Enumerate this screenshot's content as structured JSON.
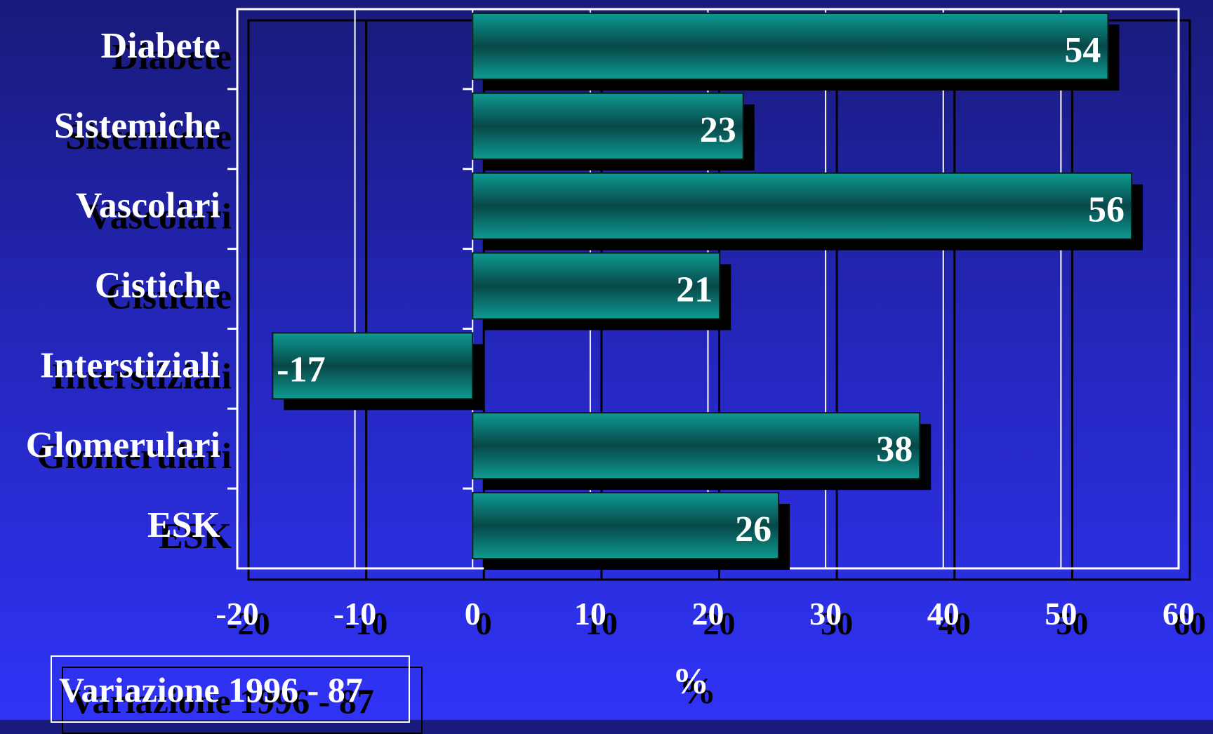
{
  "chart_data": {
    "type": "bar",
    "orientation": "horizontal",
    "categories": [
      "Diabete",
      "Sistemiche",
      "Vascolari",
      "Cistiche",
      "Interstiziali",
      "Glomerulari",
      "ESK"
    ],
    "values": [
      54,
      23,
      56,
      21,
      -17,
      38,
      26
    ],
    "xlabel": "%",
    "xlim": [
      -20,
      60
    ],
    "xticks": [
      -20,
      -10,
      0,
      10,
      20,
      30,
      40,
      50,
      60
    ],
    "grid": true,
    "bar_color": "#0f7a76"
  },
  "legend": {
    "text": "Variazione 1996 - 87"
  }
}
